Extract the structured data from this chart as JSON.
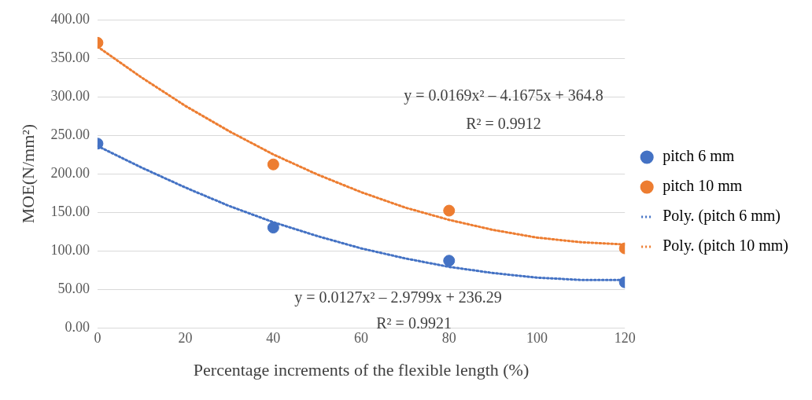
{
  "chart_data": {
    "type": "scatter",
    "xlabel": "Percentage increments of the flexible length (%)",
    "ylabel": "MOE(N/mm²)",
    "xlim": [
      0,
      120
    ],
    "xticks": [
      0,
      20,
      40,
      60,
      80,
      100,
      120
    ],
    "ylim": [
      0,
      400
    ],
    "yticks": [
      {
        "value": 0,
        "label": "0.00"
      },
      {
        "value": 50,
        "label": "50.00"
      },
      {
        "value": 100,
        "label": "100.00"
      },
      {
        "value": 150,
        "label": "150.00"
      },
      {
        "value": 200,
        "label": "200.00"
      },
      {
        "value": 250,
        "label": "250.00"
      },
      {
        "value": 300,
        "label": "300.00"
      },
      {
        "value": 350,
        "label": "350.00"
      },
      {
        "value": 400,
        "label": "400.00"
      }
    ],
    "grid": "y",
    "legend": "right",
    "marker": "circle",
    "series": [
      {
        "name": "pitch 6 mm",
        "type": "scatter",
        "color": "#4472c4",
        "x": [
          0,
          40,
          80,
          120
        ],
        "values": [
          239,
          130,
          87,
          59
        ]
      },
      {
        "name": "pitch 10 mm",
        "type": "scatter",
        "color": "#ed7d31",
        "x": [
          0,
          40,
          80,
          120
        ],
        "values": [
          370,
          212,
          152,
          103
        ]
      },
      {
        "name": "Poly. (pitch 6 mm)",
        "type": "line",
        "line_style": "dotted",
        "marker": "none",
        "color": "#4472c4",
        "x": [
          0,
          10,
          20,
          30,
          40,
          50,
          60,
          70,
          80,
          90,
          100,
          110,
          120
        ],
        "values": [
          236,
          208,
          182,
          158,
          137,
          119,
          103,
          90,
          79,
          71,
          65,
          62,
          62
        ]
      },
      {
        "name": "Poly. (pitch 10 mm)",
        "type": "line",
        "line_style": "dotted",
        "marker": "none",
        "color": "#ed7d31",
        "x": [
          0,
          10,
          20,
          30,
          40,
          50,
          60,
          70,
          80,
          90,
          100,
          110,
          120
        ],
        "values": [
          365,
          325,
          288,
          255,
          225,
          199,
          176,
          156,
          140,
          127,
          117,
          111,
          108
        ]
      }
    ],
    "annotations": [
      "y = 0.0169x² – 4.1675x + 364.8",
      "R² = 0.9912",
      "y = 0.0127x² – 2.9799x + 236.29",
      "R² = 0.9921"
    ]
  }
}
